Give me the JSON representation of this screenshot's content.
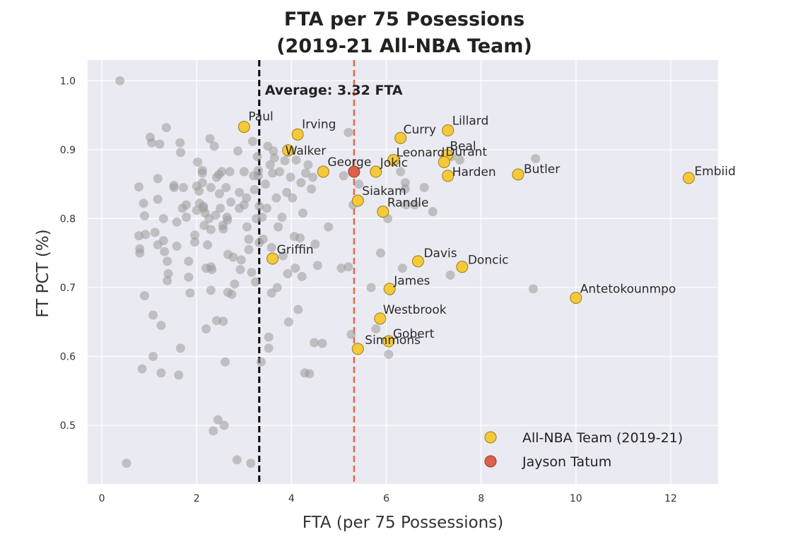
{
  "chart_data": {
    "type": "scatter",
    "title": [
      "FTA per 75 Posessions",
      "(2019-21 All-NBA Team)"
    ],
    "xlabel": "FTA (per 75 Possessions)",
    "ylabel": "FT PCT (%)",
    "xlim": [
      -0.3,
      13.0
    ],
    "ylim": [
      0.415,
      1.03
    ],
    "x_ticks": [
      0,
      2,
      4,
      6,
      8,
      10,
      12
    ],
    "x_tick_labels": [
      "0",
      "2",
      "4",
      "6",
      "8",
      "10",
      "12"
    ],
    "y_ticks": [
      0.5,
      0.6,
      0.7,
      0.8,
      0.9,
      1.0
    ],
    "y_tick_labels": [
      "0.5",
      "0.6",
      "0.7",
      "0.8",
      "0.9",
      "1.0"
    ],
    "grid": true,
    "legend_position": "bottom-right",
    "average_line": {
      "x": 3.32,
      "label": "Average: 3.32 FTA",
      "color": "#000000"
    },
    "tatum_line": {
      "x": 5.32,
      "color": "#e8654a"
    },
    "colors": {
      "background": "#eaeaf2",
      "grid": "#ffffff",
      "other_players": "#9a9a9a",
      "all_nba": "#f5c93a",
      "all_nba_edge": "#9a7d14",
      "tatum": "#e0604a",
      "tatum_edge": "#8a3a2a"
    },
    "series": [
      {
        "name": "All-NBA Team (2019-21)",
        "color": "#f5c93a"
      },
      {
        "name": "Jayson Tatum",
        "color": "#e0604a"
      }
    ],
    "all_nba_points": [
      {
        "label": "Paul",
        "x": 3.0,
        "y": 0.933
      },
      {
        "label": "Irving",
        "x": 4.13,
        "y": 0.922
      },
      {
        "label": "Walker",
        "x": 3.93,
        "y": 0.899
      },
      {
        "label": "Curry",
        "x": 6.3,
        "y": 0.917
      },
      {
        "label": "Lillard",
        "x": 7.3,
        "y": 0.928
      },
      {
        "label": "Leonard",
        "x": 6.15,
        "y": 0.885
      },
      {
        "label": "Beal",
        "x": 7.28,
        "y": 0.892
      },
      {
        "label": "Durant",
        "x": 7.22,
        "y": 0.882
      },
      {
        "label": "George",
        "x": 4.67,
        "y": 0.868
      },
      {
        "label": "Jokic",
        "x": 5.78,
        "y": 0.868
      },
      {
        "label": "Harden",
        "x": 7.3,
        "y": 0.862
      },
      {
        "label": "Butler",
        "x": 8.78,
        "y": 0.864
      },
      {
        "label": "Embiid",
        "x": 12.38,
        "y": 0.859
      },
      {
        "label": "Siakam",
        "x": 5.4,
        "y": 0.826
      },
      {
        "label": "Randle",
        "x": 5.93,
        "y": 0.81
      },
      {
        "label": "Griffin",
        "x": 3.6,
        "y": 0.742
      },
      {
        "label": "Davis",
        "x": 6.67,
        "y": 0.738
      },
      {
        "label": "Doncic",
        "x": 7.6,
        "y": 0.73
      },
      {
        "label": "James",
        "x": 6.07,
        "y": 0.698
      },
      {
        "label": "Antetokounmpo",
        "x": 10.0,
        "y": 0.685
      },
      {
        "label": "Westbrook",
        "x": 5.87,
        "y": 0.655
      },
      {
        "label": "Gobert",
        "x": 6.05,
        "y": 0.622
      },
      {
        "label": "Simmons",
        "x": 5.4,
        "y": 0.611
      }
    ],
    "tatum_point": {
      "label": "Jayson Tatum",
      "x": 5.32,
      "y": 0.868
    },
    "other_points": [
      [
        0.38,
        1.0
      ],
      [
        0.52,
        0.445
      ],
      [
        0.78,
        0.846
      ],
      [
        0.78,
        0.775
      ],
      [
        0.8,
        0.756
      ],
      [
        0.8,
        0.75
      ],
      [
        0.85,
        0.582
      ],
      [
        0.88,
        0.822
      ],
      [
        0.9,
        0.804
      ],
      [
        0.92,
        0.777
      ],
      [
        0.9,
        0.688
      ],
      [
        1.02,
        0.918
      ],
      [
        1.05,
        0.91
      ],
      [
        1.08,
        0.66
      ],
      [
        1.08,
        0.6
      ],
      [
        1.12,
        0.78
      ],
      [
        1.18,
        0.858
      ],
      [
        1.18,
        0.828
      ],
      [
        1.18,
        0.762
      ],
      [
        1.22,
        0.908
      ],
      [
        1.25,
        0.576
      ],
      [
        1.25,
        0.645
      ],
      [
        1.3,
        0.8
      ],
      [
        1.3,
        0.768
      ],
      [
        1.32,
        0.752
      ],
      [
        1.36,
        0.932
      ],
      [
        1.38,
        0.738
      ],
      [
        1.4,
        0.72
      ],
      [
        1.38,
        0.71
      ],
      [
        1.52,
        0.848
      ],
      [
        1.52,
        0.845
      ],
      [
        1.58,
        0.76
      ],
      [
        1.58,
        0.795
      ],
      [
        1.62,
        0.573
      ],
      [
        1.65,
        0.91
      ],
      [
        1.66,
        0.896
      ],
      [
        1.66,
        0.612
      ],
      [
        1.7,
        0.815
      ],
      [
        1.72,
        0.845
      ],
      [
        1.78,
        0.82
      ],
      [
        1.78,
        0.802
      ],
      [
        1.83,
        0.738
      ],
      [
        1.83,
        0.715
      ],
      [
        1.86,
        0.692
      ],
      [
        1.96,
        0.776
      ],
      [
        1.96,
        0.766
      ],
      [
        2.0,
        0.847
      ],
      [
        2.0,
        0.812
      ],
      [
        2.02,
        0.882
      ],
      [
        2.05,
        0.84
      ],
      [
        2.06,
        0.822
      ],
      [
        2.12,
        0.87
      ],
      [
        2.12,
        0.866
      ],
      [
        2.12,
        0.852
      ],
      [
        2.14,
        0.818
      ],
      [
        2.14,
        0.815
      ],
      [
        2.16,
        0.79
      ],
      [
        2.18,
        0.808
      ],
      [
        2.2,
        0.728
      ],
      [
        2.2,
        0.64
      ],
      [
        2.23,
        0.762
      ],
      [
        2.26,
        0.8
      ],
      [
        2.28,
        0.916
      ],
      [
        2.3,
        0.845
      ],
      [
        2.3,
        0.784
      ],
      [
        2.3,
        0.73
      ],
      [
        2.3,
        0.696
      ],
      [
        2.32,
        0.726
      ],
      [
        2.35,
        0.492
      ],
      [
        2.37,
        0.905
      ],
      [
        2.4,
        0.805
      ],
      [
        2.42,
        0.86
      ],
      [
        2.42,
        0.652
      ],
      [
        2.45,
        0.508
      ],
      [
        2.47,
        0.864
      ],
      [
        2.48,
        0.836
      ],
      [
        2.5,
        0.815
      ],
      [
        2.53,
        0.868
      ],
      [
        2.55,
        0.79
      ],
      [
        2.56,
        0.785
      ],
      [
        2.56,
        0.651
      ],
      [
        2.58,
        0.5
      ],
      [
        2.6,
        0.592
      ],
      [
        2.62,
        0.845
      ],
      [
        2.64,
        0.802
      ],
      [
        2.65,
        0.798
      ],
      [
        2.66,
        0.748
      ],
      [
        2.66,
        0.693
      ],
      [
        2.7,
        0.868
      ],
      [
        2.72,
        0.824
      ],
      [
        2.74,
        0.69
      ],
      [
        2.77,
        0.744
      ],
      [
        2.8,
        0.705
      ],
      [
        2.85,
        0.45
      ],
      [
        2.87,
        0.898
      ],
      [
        2.9,
        0.815
      ],
      [
        2.9,
        0.838
      ],
      [
        2.92,
        0.726
      ],
      [
        2.94,
        0.74
      ],
      [
        3.0,
        0.868
      ],
      [
        3.0,
        0.82
      ],
      [
        3.05,
        0.83
      ],
      [
        3.06,
        0.788
      ],
      [
        3.1,
        0.77
      ],
      [
        3.1,
        0.755
      ],
      [
        3.14,
        0.445
      ],
      [
        3.16,
        0.722
      ],
      [
        3.18,
        0.912
      ],
      [
        3.2,
        0.862
      ],
      [
        3.22,
        0.842
      ],
      [
        3.24,
        0.708
      ],
      [
        3.26,
        0.8
      ],
      [
        3.28,
        0.89
      ],
      [
        3.3,
        0.87
      ],
      [
        3.3,
        0.862
      ],
      [
        3.32,
        0.818
      ],
      [
        3.32,
        0.765
      ],
      [
        3.36,
        0.592
      ],
      [
        3.38,
        0.802
      ],
      [
        3.4,
        0.77
      ],
      [
        3.45,
        0.85
      ],
      [
        3.48,
        0.815
      ],
      [
        3.5,
        0.905
      ],
      [
        3.52,
        0.628
      ],
      [
        3.52,
        0.612
      ],
      [
        3.55,
        0.878
      ],
      [
        3.58,
        0.758
      ],
      [
        3.58,
        0.692
      ],
      [
        3.6,
        0.866
      ],
      [
        3.62,
        0.898
      ],
      [
        3.64,
        0.888
      ],
      [
        3.68,
        0.83
      ],
      [
        3.7,
        0.7
      ],
      [
        3.72,
        0.788
      ],
      [
        3.75,
        0.868
      ],
      [
        3.8,
        0.802
      ],
      [
        3.82,
        0.746
      ],
      [
        3.86,
        0.884
      ],
      [
        3.9,
        0.838
      ],
      [
        3.92,
        0.72
      ],
      [
        3.94,
        0.65
      ],
      [
        3.98,
        0.86
      ],
      [
        4.02,
        0.83
      ],
      [
        4.06,
        0.774
      ],
      [
        4.08,
        0.728
      ],
      [
        4.1,
        0.885
      ],
      [
        4.14,
        0.668
      ],
      [
        4.18,
        0.772
      ],
      [
        4.2,
        0.852
      ],
      [
        4.22,
        0.716
      ],
      [
        4.24,
        0.808
      ],
      [
        4.28,
        0.576
      ],
      [
        4.3,
        0.866
      ],
      [
        4.35,
        0.878
      ],
      [
        4.38,
        0.575
      ],
      [
        4.42,
        0.843
      ],
      [
        4.45,
        0.86
      ],
      [
        4.48,
        0.62
      ],
      [
        4.5,
        0.763
      ],
      [
        4.55,
        0.732
      ],
      [
        4.65,
        0.619
      ],
      [
        4.78,
        0.788
      ],
      [
        5.05,
        0.728
      ],
      [
        5.1,
        0.862
      ],
      [
        5.2,
        0.925
      ],
      [
        5.2,
        0.73
      ],
      [
        5.26,
        0.632
      ],
      [
        5.3,
        0.82
      ],
      [
        5.42,
        0.85
      ],
      [
        5.68,
        0.7
      ],
      [
        5.78,
        0.64
      ],
      [
        5.88,
        0.75
      ],
      [
        6.03,
        0.8
      ],
      [
        6.05,
        0.603
      ],
      [
        6.08,
        0.695
      ],
      [
        6.3,
        0.868
      ],
      [
        6.34,
        0.728
      ],
      [
        6.4,
        0.852
      ],
      [
        6.4,
        0.843
      ],
      [
        6.42,
        0.82
      ],
      [
        6.6,
        0.82
      ],
      [
        6.8,
        0.845
      ],
      [
        6.98,
        0.81
      ],
      [
        7.35,
        0.718
      ],
      [
        7.38,
        0.89
      ],
      [
        7.55,
        0.885
      ],
      [
        9.1,
        0.698
      ],
      [
        9.15,
        0.887
      ]
    ]
  }
}
